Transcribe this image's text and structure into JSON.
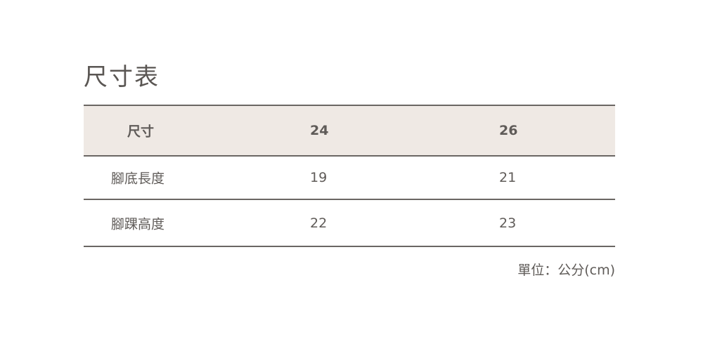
{
  "title": "尺寸表",
  "table": {
    "headers": [
      "尺寸",
      "24",
      "26"
    ],
    "rows": [
      [
        "腳底長度",
        "19",
        "21"
      ],
      [
        "腳踝高度",
        "22",
        "23"
      ]
    ]
  },
  "unit_note": "單位：公分(cm)",
  "colors": {
    "header_bg": "#efe9e4",
    "border": "#6a6663",
    "text": "#5f5b58"
  }
}
